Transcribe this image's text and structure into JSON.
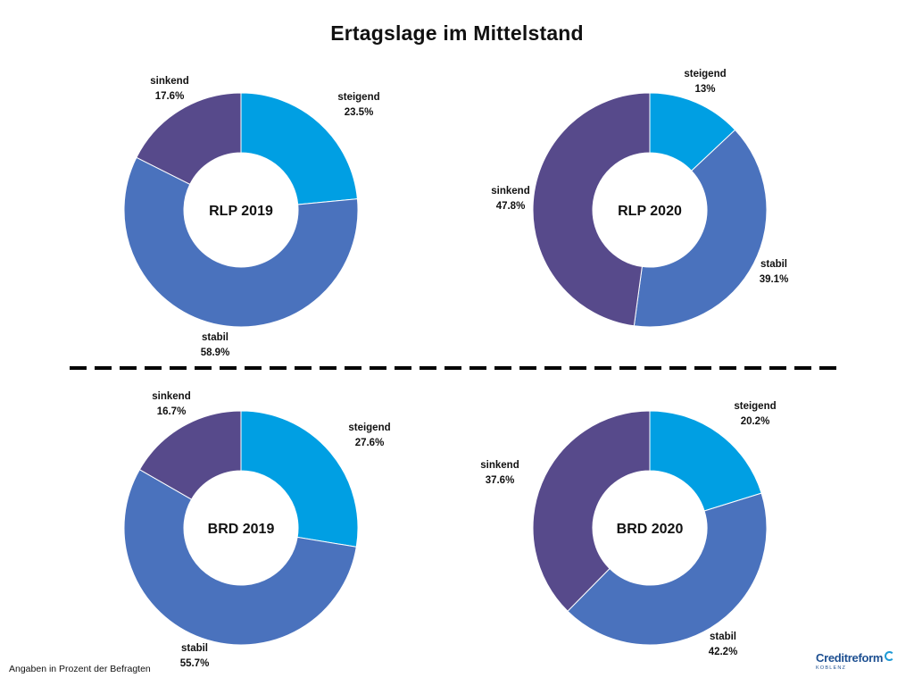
{
  "title": "Ertagslage im Mittelstand",
  "footnote": "Angaben in Prozent der Befragten",
  "logo": {
    "brand": "Creditreform",
    "sub": "KOBLENZ"
  },
  "colors": {
    "steigend": "#009fe3",
    "stabil": "#4a72bd",
    "sinkend": "#574a8b",
    "divider": "#000000"
  },
  "chart_data": [
    {
      "type": "pie",
      "center_label": "RLP 2019",
      "slices": [
        {
          "name": "steigend",
          "value": 23.5,
          "value_label": "23.5%"
        },
        {
          "name": "stabil",
          "value": 58.9,
          "value_label": "58.9%"
        },
        {
          "name": "sinkend",
          "value": 17.6,
          "value_label": "17.6%"
        }
      ]
    },
    {
      "type": "pie",
      "center_label": "RLP 2020",
      "slices": [
        {
          "name": "steigend",
          "value": 13.0,
          "value_label": "13%"
        },
        {
          "name": "stabil",
          "value": 39.1,
          "value_label": "39.1%"
        },
        {
          "name": "sinkend",
          "value": 47.8,
          "value_label": "47.8%"
        }
      ]
    },
    {
      "type": "pie",
      "center_label": "BRD 2019",
      "slices": [
        {
          "name": "steigend",
          "value": 27.6,
          "value_label": "27.6%"
        },
        {
          "name": "stabil",
          "value": 55.7,
          "value_label": "55.7%"
        },
        {
          "name": "sinkend",
          "value": 16.7,
          "value_label": "16.7%"
        }
      ]
    },
    {
      "type": "pie",
      "center_label": "BRD 2020",
      "slices": [
        {
          "name": "steigend",
          "value": 20.2,
          "value_label": "20.2%"
        },
        {
          "name": "stabil",
          "value": 42.2,
          "value_label": "42.2%"
        },
        {
          "name": "sinkend",
          "value": 37.6,
          "value_label": "37.6%"
        }
      ]
    }
  ]
}
